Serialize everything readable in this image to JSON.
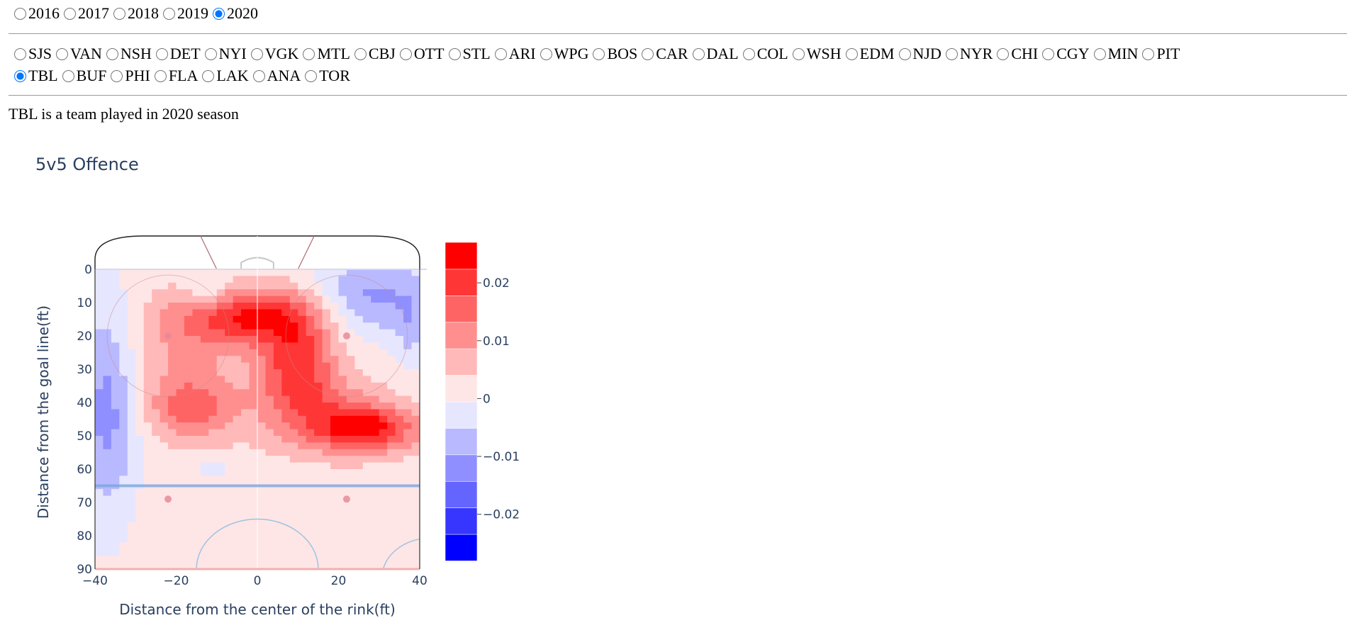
{
  "seasons": {
    "options": [
      "2016",
      "2017",
      "2018",
      "2019",
      "2020"
    ],
    "selected": "2020"
  },
  "teams": {
    "row1": [
      "SJS",
      "VAN",
      "NSH",
      "DET",
      "NYI",
      "VGK",
      "MTL",
      "CBJ",
      "OTT",
      "STL",
      "ARI",
      "WPG",
      "BOS",
      "CAR",
      "DAL",
      "COL",
      "WSH",
      "EDM",
      "NJD",
      "NYR",
      "CHI",
      "CGY",
      "MIN",
      "PIT"
    ],
    "row2": [
      "TBL",
      "BUF",
      "PHI",
      "FLA",
      "LAK",
      "ANA",
      "TOR"
    ],
    "selected": "TBL"
  },
  "status_text": "TBL is a team played in 2020 season",
  "chart_data": {
    "type": "heatmap",
    "subtype": "filled-contour",
    "title": "5v5 Offence",
    "xlabel": "Distance from the center of the rink(ft)",
    "ylabel": "Distance from the goal line(ft)",
    "xlim": [
      -40,
      40
    ],
    "ylim": [
      90,
      0
    ],
    "x_ticks": [
      -40,
      -20,
      0,
      20,
      40
    ],
    "y_ticks": [
      0,
      10,
      20,
      30,
      40,
      50,
      60,
      70,
      80,
      90
    ],
    "colorbar": {
      "ticks": [
        0.02,
        0.01,
        0,
        -0.01,
        -0.02
      ],
      "tick_labels": [
        "0.02",
        "0.01",
        "0",
        "−0.01",
        "−0.02"
      ],
      "range": [
        -0.028,
        0.027
      ],
      "colors": [
        "#0000ff",
        "#3636ff",
        "#6464ff",
        "#8f8fff",
        "#b9b9ff",
        "#e6e6ff",
        "#ffe6e6",
        "#ffb9b9",
        "#ff8f8f",
        "#ff6464",
        "#ff3636",
        "#ff0000"
      ]
    },
    "regions": [
      {
        "label": "high-slot hot spot",
        "x": -2,
        "y": 14,
        "value": 0.021
      },
      {
        "label": "right circle hot spot",
        "x": 26,
        "y": 48,
        "value": 0.021
      },
      {
        "label": "left circle warm zone",
        "x": -16,
        "y": 42,
        "value": 0.012
      },
      {
        "label": "left boards cold zone",
        "x": -36,
        "y": 40,
        "value": -0.012
      },
      {
        "label": "right corner cold zone",
        "x": 28,
        "y": 8,
        "value": -0.012
      },
      {
        "label": "neutral zone",
        "x": 0,
        "y": 80,
        "value": 0.001
      }
    ]
  }
}
